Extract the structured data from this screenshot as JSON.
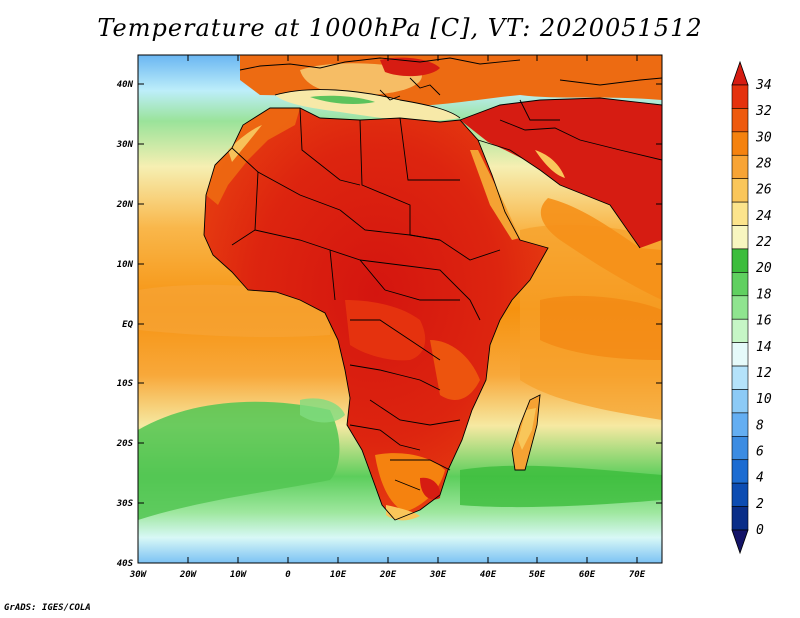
{
  "title": "Temperature at 1000hPa [C], VT: 2020051512",
  "credit": "GrADS: IGES/COLA",
  "map": {
    "lat_labels": [
      "40N",
      "30N",
      "20N",
      "10N",
      "EQ",
      "10S",
      "20S",
      "30S",
      "40S"
    ],
    "lon_labels": [
      "30W",
      "20W",
      "10W",
      "0",
      "10E",
      "20E",
      "30E",
      "40E",
      "50E",
      "60E",
      "70E"
    ]
  },
  "colorbar": {
    "labels": [
      "34",
      "32",
      "30",
      "28",
      "26",
      "24",
      "22",
      "20",
      "18",
      "16",
      "14",
      "12",
      "10",
      "8",
      "6",
      "4",
      "2",
      "0"
    ],
    "colors": [
      "#d61c12",
      "#e5320e",
      "#ee5a0e",
      "#f5820f",
      "#f8a435",
      "#fac65a",
      "#fce48c",
      "#f8f6c0",
      "#3cbd3c",
      "#60d060",
      "#8fe48f",
      "#c6f6c6",
      "#e6fafa",
      "#b4e2fa",
      "#8ccaf6",
      "#64aef2",
      "#3c8ce2",
      "#1c6cd2",
      "#0c4cb2",
      "#0a2e88",
      "#141468"
    ]
  },
  "icons": {
    "top_triangle": "arrow-up-icon",
    "bottom_triangle": "arrow-down-icon"
  }
}
